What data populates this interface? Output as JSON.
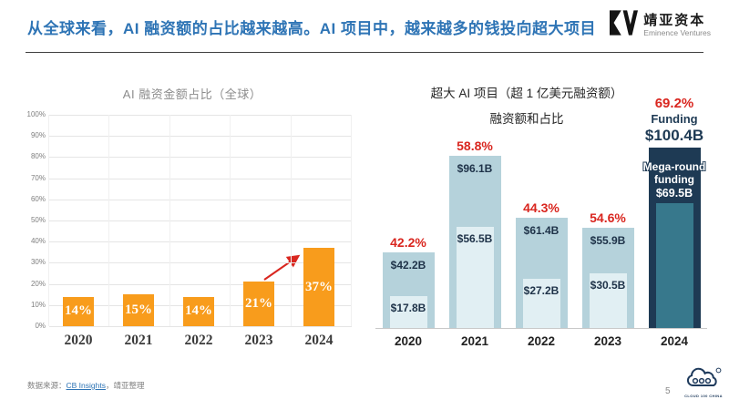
{
  "colors": {
    "header_blue": "#2E74B5",
    "orange": "#F89C1C",
    "red": "#D9261F",
    "light_blue": "#B5D2DB",
    "pale_blue": "#E1EFF3",
    "navy": "#1E3A54",
    "teal": "#37788C",
    "value_text": "#1E3248",
    "grid": "#E5E5E5",
    "tick_text": "#7F7F7F",
    "year_left": "#3A3A3A",
    "year_right": "#222222"
  },
  "header": {
    "title": "从全球来看，AI 融资额的占比越来越高。AI 项目中，越来越多的钱投向超大项目",
    "logo_name": "靖亚资本",
    "logo_subtitle": "Eminence Ventures"
  },
  "footer": {
    "source_prefix": "数据来源：",
    "source_link": "CB Insights",
    "source_suffix": "，靖亚整理",
    "page_number": "5",
    "cloud_logo_caption": "CLOUD 100 CHINA"
  },
  "chart_data": [
    {
      "id": "global-ai-funding-share",
      "type": "bar",
      "title": "AI 融资金额占比（全球）",
      "categories": [
        "2020",
        "2021",
        "2022",
        "2023",
        "2024"
      ],
      "values": [
        14,
        15,
        14,
        21,
        37
      ],
      "bar_labels": [
        "14%",
        "15%",
        "14%",
        "21%",
        "37%"
      ],
      "ylabel_ticks": [
        "0%",
        "10%",
        "20%",
        "30%",
        "40%",
        "50%",
        "60%",
        "70%",
        "80%",
        "90%",
        "100%"
      ],
      "ylim": [
        0,
        100
      ],
      "grid": true,
      "legend": "none",
      "annotation": {
        "type": "arrow",
        "from_category": "2023",
        "to_category": "2024"
      }
    },
    {
      "id": "mega-ai-projects-funding",
      "type": "bar",
      "title": "超大 AI 项目（超 1 亿美元融资额）",
      "subtitle": "融资额和占比",
      "categories": [
        "2020",
        "2021",
        "2022",
        "2023",
        "2024"
      ],
      "series": [
        {
          "name": "Funding",
          "unit": "USD billions",
          "values": [
            42.2,
            96.1,
            61.4,
            55.9,
            100.4
          ],
          "labels": [
            "$42.2B",
            "$96.1B",
            "$61.4B",
            "$55.9B",
            "$100.4B"
          ]
        },
        {
          "name": "Mega-round funding",
          "unit": "USD billions",
          "values": [
            17.8,
            56.5,
            27.2,
            30.5,
            69.5
          ],
          "labels": [
            "$17.8B",
            "$56.5B",
            "$27.2B",
            "$30.5B",
            "$69.5B"
          ]
        }
      ],
      "share_labels": [
        "42.2%",
        "58.8%",
        "44.3%",
        "54.6%",
        "69.2%"
      ],
      "highlight_category": "2024",
      "highlight_annotations": {
        "share": "69.2%",
        "funding_caption": "Funding",
        "funding_value": "$100.4B",
        "mega_caption_line1": "Mega-round",
        "mega_caption_line2": "funding",
        "mega_value": "$69.5B"
      },
      "grid": false,
      "legend": "none"
    }
  ]
}
